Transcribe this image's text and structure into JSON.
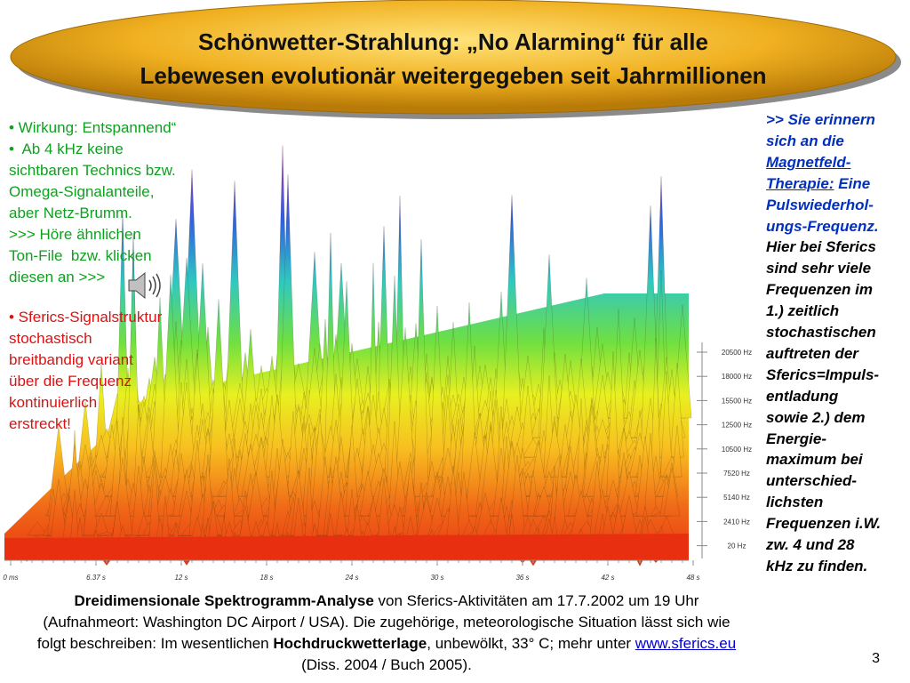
{
  "title": {
    "line1": "Schönwetter-Strahlung: „No Alarming“ für alle",
    "line2": "Lebewesen evolutionär weitergegeben seit Jahrmillionen"
  },
  "left": {
    "green": [
      "• Wirkung: Entspannend“",
      "•  Ab 4 kHz keine",
      "sichtbaren Technics bzw.",
      "Omega-Signalanteile,",
      "aber Netz-Brumm.",
      ">>> Höre ähnlichen",
      "Ton-File  bzw. klicken",
      "diesen an >>>"
    ],
    "red": [
      "• Sferics-Signalstruktur",
      "stochastisch",
      "breitbandig variant",
      "über die Frequenz",
      "kontinuierlich",
      "erstreckt!"
    ]
  },
  "right": {
    "blue": [
      ">> Sie erinnern",
      "sich an die"
    ],
    "link1": "Magnetfeld-",
    "link2": "Therapie:",
    "blue_rest": " Eine",
    "blue2": [
      "Pulswiederhol-",
      "ungs-Frequenz."
    ],
    "black": [
      "Hier bei Sferics",
      "sind sehr viele",
      "Frequenzen im",
      "1.) zeitlich",
      "stochastischen",
      "auftreten der",
      "Sferics=Impuls-",
      "entladung",
      "sowie 2.) dem",
      "Energie-",
      "maximum bei",
      "unterschied-",
      "lichsten",
      "Frequenzen i.W.",
      "zw. 4 und 28",
      "kHz zu finden."
    ]
  },
  "spectrogram": {
    "x_labels": [
      "0 ms",
      "6.37 s",
      "12 s",
      "18 s",
      "24 s",
      "30 s",
      "36 s",
      "42 s",
      "48 s"
    ],
    "y_labels": [
      "20500 Hz",
      "18000 Hz",
      "15500 Hz",
      "12500 Hz",
      "10500 Hz",
      "7520 Hz",
      "5140 Hz",
      "2410 Hz",
      "20 Hz"
    ]
  },
  "caption": {
    "bold1": "Dreidimensionale Spektrogramm-Analyse",
    "text1": " von Sferics-Aktivitäten am 17.7.2002 um 19 Uhr (Aufnahmeort: Washington DC Airport / USA). Die zugehörige, meteorologische Situation lässt sich wie folgt beschreiben: Im wesentlichen ",
    "bold2": "Hochdruckwetterlage",
    "text2": ", unbewölkt, 33° C; mehr unter ",
    "link": "www.sferics.eu",
    "text3": " (Diss. 2004 / Buch 2005)."
  },
  "page_number": "3"
}
